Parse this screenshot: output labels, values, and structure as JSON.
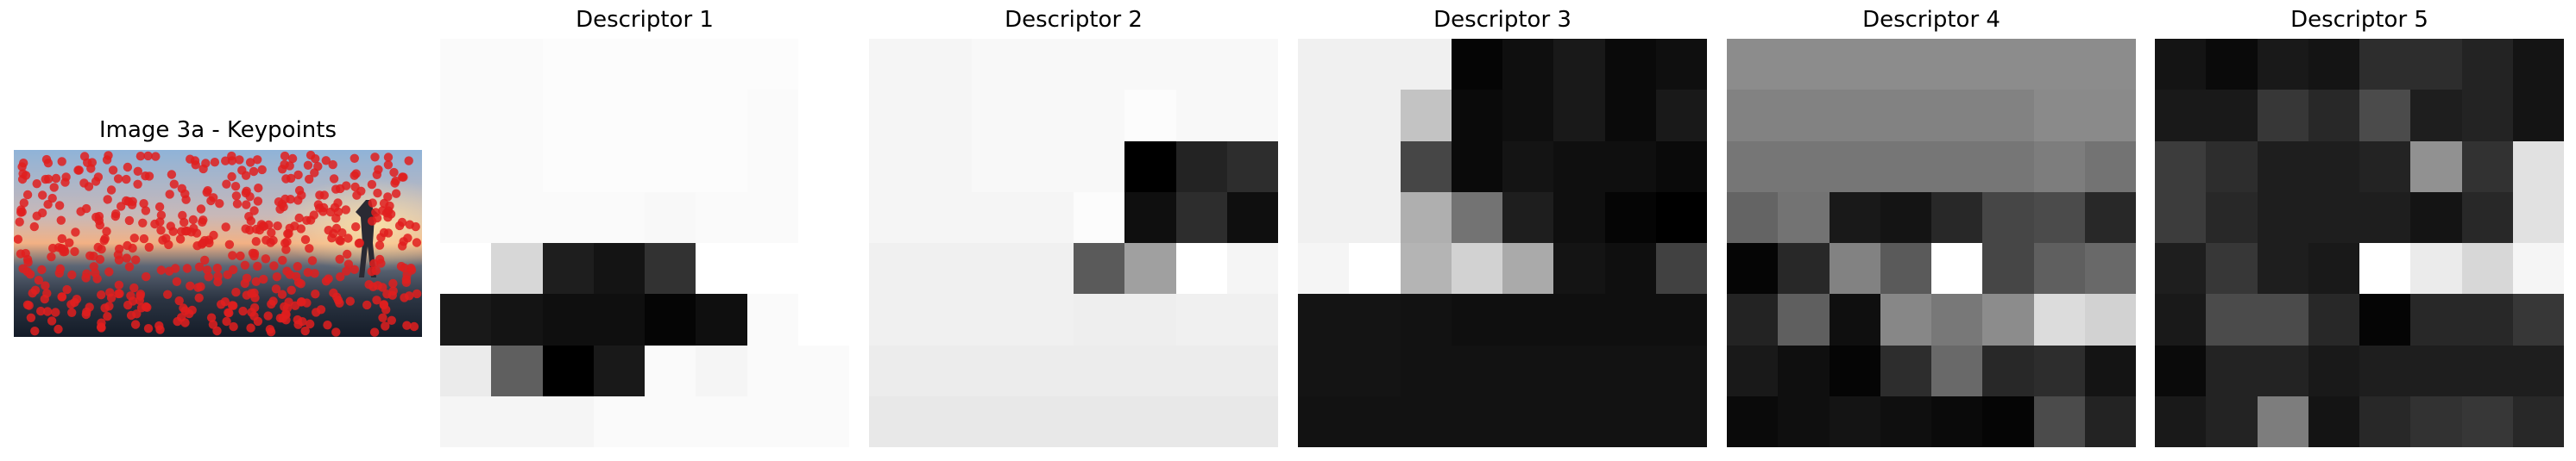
{
  "figure": {
    "image_panel": {
      "title": "Image 3a - Keypoints"
    },
    "descriptors": [
      {
        "title": "Descriptor 1"
      },
      {
        "title": "Descriptor 2"
      },
      {
        "title": "Descriptor 3"
      },
      {
        "title": "Descriptor 4"
      },
      {
        "title": "Descriptor 5"
      }
    ]
  },
  "chart_data": {
    "type": "heatmap",
    "colormap": "grayscale",
    "value_range": [
      0,
      255
    ],
    "keypoint_color": "#e01e1e",
    "descriptors": [
      {
        "title": "Descriptor 1",
        "rows": [
          [
            250,
            250,
            252,
            252,
            252,
            252,
            252,
            255
          ],
          [
            250,
            250,
            252,
            252,
            252,
            252,
            250,
            255
          ],
          [
            250,
            250,
            252,
            252,
            252,
            252,
            250,
            255
          ],
          [
            250,
            250,
            250,
            250,
            248,
            250,
            250,
            255
          ],
          [
            255,
            215,
            30,
            20,
            50,
            255,
            255,
            255
          ],
          [
            25,
            20,
            15,
            15,
            5,
            15,
            250,
            255
          ],
          [
            235,
            95,
            0,
            25,
            250,
            245,
            250,
            250
          ],
          [
            245,
            245,
            245,
            250,
            250,
            250,
            250,
            250
          ]
        ]
      },
      {
        "title": "Descriptor 2",
        "rows": [
          [
            245,
            245,
            248,
            248,
            248,
            248,
            248,
            248
          ],
          [
            245,
            245,
            248,
            248,
            248,
            252,
            248,
            248
          ],
          [
            245,
            245,
            248,
            248,
            248,
            0,
            35,
            45
          ],
          [
            245,
            245,
            245,
            245,
            252,
            15,
            45,
            15
          ],
          [
            240,
            240,
            240,
            240,
            90,
            160,
            255,
            245
          ],
          [
            240,
            240,
            240,
            240,
            238,
            238,
            240,
            240
          ],
          [
            236,
            236,
            236,
            236,
            236,
            236,
            236,
            236
          ],
          [
            232,
            232,
            232,
            232,
            232,
            232,
            232,
            232
          ]
        ]
      },
      {
        "title": "Descriptor 3",
        "rows": [
          [
            240,
            240,
            240,
            5,
            15,
            25,
            10,
            15
          ],
          [
            240,
            240,
            195,
            10,
            15,
            25,
            10,
            25
          ],
          [
            240,
            240,
            70,
            10,
            20,
            15,
            15,
            10
          ],
          [
            240,
            240,
            175,
            115,
            30,
            15,
            5,
            0
          ],
          [
            245,
            255,
            180,
            210,
            170,
            20,
            15,
            65
          ],
          [
            20,
            20,
            18,
            15,
            15,
            15,
            15,
            15
          ],
          [
            20,
            20,
            18,
            18,
            18,
            18,
            18,
            18
          ],
          [
            18,
            18,
            18,
            18,
            18,
            18,
            18,
            18
          ]
        ]
      },
      {
        "title": "Descriptor 4",
        "rows": [
          [
            140,
            140,
            140,
            140,
            140,
            140,
            140,
            140
          ],
          [
            130,
            130,
            130,
            130,
            130,
            130,
            138,
            138
          ],
          [
            118,
            118,
            118,
            118,
            118,
            118,
            125,
            115
          ],
          [
            100,
            115,
            25,
            20,
            40,
            70,
            75,
            40
          ],
          [
            5,
            40,
            130,
            90,
            255,
            70,
            95,
            105
          ],
          [
            35,
            95,
            15,
            135,
            120,
            140,
            220,
            210
          ],
          [
            25,
            15,
            5,
            45,
            105,
            40,
            45,
            20
          ],
          [
            10,
            15,
            20,
            15,
            10,
            5,
            75,
            35
          ]
        ]
      },
      {
        "title": "Descriptor 5",
        "rows": [
          [
            20,
            10,
            25,
            20,
            45,
            45,
            35,
            20
          ],
          [
            25,
            25,
            55,
            40,
            75,
            30,
            35,
            20
          ],
          [
            60,
            45,
            30,
            30,
            35,
            145,
            50,
            225
          ],
          [
            60,
            40,
            30,
            30,
            30,
            20,
            40,
            225
          ],
          [
            30,
            55,
            30,
            25,
            255,
            235,
            215,
            245
          ],
          [
            25,
            75,
            75,
            40,
            5,
            40,
            40,
            55
          ],
          [
            10,
            35,
            35,
            25,
            30,
            30,
            30,
            30
          ],
          [
            25,
            35,
            125,
            20,
            40,
            50,
            55,
            40
          ]
        ]
      }
    ]
  }
}
